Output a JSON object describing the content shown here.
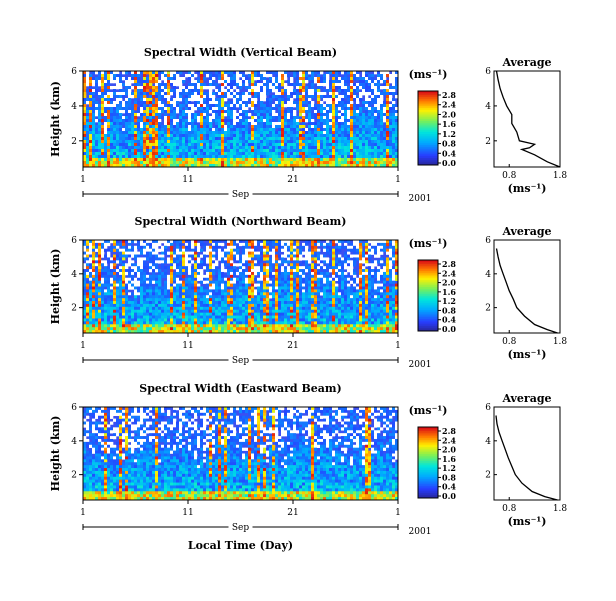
{
  "chart_data": [
    {
      "type": "heatmap",
      "title": "Spectral Width (Vertical Beam)",
      "ylabel": "Height (km)",
      "y_ticks": [
        "2",
        "4",
        "6"
      ],
      "x_ticks": [
        "1",
        "11",
        "21",
        "1"
      ],
      "month_label": "Sep",
      "year_label": "2001",
      "colorbar_unit": "(ms⁻¹)",
      "colorbar_ticks": [
        "0.0",
        "0.4",
        "0.8",
        "1.2",
        "1.6",
        "2.0",
        "2.4",
        "2.8"
      ],
      "ylim": [
        0.5,
        6
      ],
      "profile": {
        "title": "Average",
        "xlabel": "(ms⁻¹)",
        "x_ticks": [
          "0.8",
          "1.8"
        ],
        "y_ticks": [
          "2",
          "4",
          "6"
        ],
        "xlim": [
          0.5,
          1.8
        ],
        "ylim": [
          0.5,
          6
        ],
        "width": [
          1.8,
          1.55,
          1.3,
          1.05,
          1.2,
          1.3,
          1.0,
          0.95,
          0.85,
          0.85,
          0.75,
          0.68,
          0.62,
          0.58,
          0.55
        ],
        "height": [
          0.5,
          0.8,
          1.2,
          1.5,
          1.6,
          1.8,
          2.0,
          2.5,
          3.0,
          3.5,
          4.0,
          4.5,
          5.0,
          5.5,
          6.0
        ]
      }
    },
    {
      "type": "heatmap",
      "title": "Spectral Width (Northward Beam)",
      "ylabel": "Height (km)",
      "y_ticks": [
        "2",
        "4",
        "6"
      ],
      "x_ticks": [
        "1",
        "11",
        "21",
        "1"
      ],
      "month_label": "Sep",
      "year_label": "2001",
      "colorbar_unit": "(ms⁻¹)",
      "colorbar_ticks": [
        "0.0",
        "0.4",
        "0.8",
        "1.2",
        "1.6",
        "2.0",
        "2.4",
        "2.8"
      ],
      "ylim": [
        0.5,
        6
      ],
      "profile": {
        "title": "Average",
        "xlabel": "(ms⁻¹)",
        "x_ticks": [
          "0.8",
          "1.8"
        ],
        "y_ticks": [
          "2",
          "4",
          "6"
        ],
        "xlim": [
          0.5,
          1.8
        ],
        "ylim": [
          0.5,
          6
        ],
        "width": [
          1.75,
          1.55,
          1.3,
          1.1,
          0.95,
          0.88,
          0.8,
          0.74,
          0.68,
          0.62,
          0.58,
          0.55
        ],
        "height": [
          0.5,
          0.7,
          1.0,
          1.5,
          2.0,
          2.5,
          3.0,
          3.5,
          4.0,
          4.5,
          5.0,
          5.5
        ]
      }
    },
    {
      "type": "heatmap",
      "title": "Spectral Width (Eastward Beam)",
      "ylabel": "Height (km)",
      "y_ticks": [
        "2",
        "4",
        "6"
      ],
      "x_ticks": [
        "1",
        "11",
        "21",
        "1"
      ],
      "month_label": "Sep",
      "year_label": "2001",
      "xlabel": "Local Time (Day)",
      "colorbar_unit": "(ms⁻¹)",
      "colorbar_ticks": [
        "0.0",
        "0.4",
        "0.8",
        "1.2",
        "1.6",
        "2.0",
        "2.4",
        "2.8"
      ],
      "ylim": [
        0.5,
        6
      ],
      "profile": {
        "title": "Average",
        "xlabel": "(ms⁻¹)",
        "x_ticks": [
          "0.8",
          "1.8"
        ],
        "y_ticks": [
          "2",
          "4",
          "6"
        ],
        "xlim": [
          0.5,
          1.8
        ],
        "ylim": [
          0.5,
          6
        ],
        "width": [
          1.75,
          1.5,
          1.25,
          1.05,
          0.92,
          0.85,
          0.78,
          0.72,
          0.66,
          0.6,
          0.56,
          0.54
        ],
        "height": [
          0.5,
          0.7,
          1.0,
          1.5,
          2.0,
          2.5,
          3.0,
          3.5,
          4.0,
          4.5,
          5.0,
          5.5
        ]
      }
    }
  ]
}
